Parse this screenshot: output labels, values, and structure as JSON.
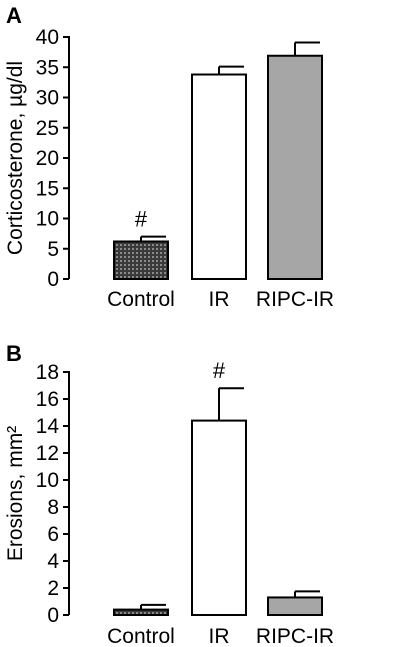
{
  "chart_data": [
    {
      "type": "bar",
      "panel_label": "A",
      "categories": [
        "Control",
        "IR",
        "RIPC-IR"
      ],
      "values": [
        6.2,
        33.8,
        36.9
      ],
      "errors": [
        0.8,
        1.3,
        2.2
      ],
      "fills": [
        "dotted",
        "#ffffff",
        "#a6a6a6"
      ],
      "annotations": [
        {
          "category": "Control",
          "text": "#"
        }
      ],
      "ylabel": "Corticosterone, µg/dl",
      "xlabel": "",
      "ylim": [
        0,
        40
      ],
      "yticks": [
        "0",
        "5",
        "10",
        "15",
        "20",
        "25",
        "30",
        "35",
        "40"
      ],
      "grid": false
    },
    {
      "type": "bar",
      "panel_label": "B",
      "categories": [
        "Control",
        "IR",
        "RIPC-IR"
      ],
      "values": [
        0.4,
        14.4,
        1.3
      ],
      "errors": [
        0.35,
        2.4,
        0.45
      ],
      "fills": [
        "dotted",
        "#ffffff",
        "#a6a6a6"
      ],
      "annotations": [
        {
          "category": "IR",
          "text": "#"
        }
      ],
      "ylabel": "Erosions, mm²",
      "xlabel": "",
      "ylim": [
        0,
        18
      ],
      "yticks": [
        "0",
        "2",
        "4",
        "6",
        "8",
        "10",
        "12",
        "14",
        "16",
        "18"
      ],
      "grid": false
    }
  ]
}
